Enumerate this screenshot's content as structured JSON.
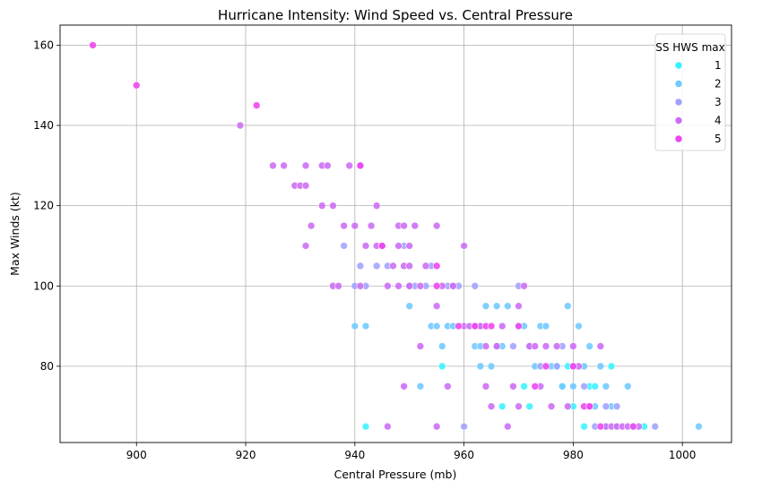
{
  "chart_data": {
    "type": "scatter",
    "title": "Hurricane Intensity: Wind Speed vs. Central Pressure",
    "xlabel": "Central Pressure (mb)",
    "ylabel": "Max Winds (kt)",
    "xlim": [
      886,
      1009
    ],
    "ylim": [
      61,
      165
    ],
    "xticks": [
      900,
      920,
      940,
      960,
      980,
      1000
    ],
    "yticks": [
      80,
      100,
      120,
      140,
      160
    ],
    "grid": true,
    "legend": {
      "title": "SS HWS max",
      "placement": "top-right"
    },
    "series": [
      {
        "name": "1",
        "color": "#38f2ff",
        "points": [
          [
            942,
            65
          ],
          [
            956,
            80
          ],
          [
            967,
            70
          ],
          [
            971,
            75
          ],
          [
            972,
            70
          ],
          [
            977,
            80
          ],
          [
            978,
            75
          ],
          [
            980,
            70
          ],
          [
            982,
            65
          ],
          [
            983,
            75
          ],
          [
            984,
            75
          ],
          [
            986,
            65
          ],
          [
            987,
            80
          ],
          [
            991,
            65
          ],
          [
            993,
            65
          ],
          [
            979,
            80
          ]
        ]
      },
      {
        "name": "2",
        "color": "#6fc8ff",
        "points": [
          [
            940,
            90
          ],
          [
            942,
            90
          ],
          [
            950,
            95
          ],
          [
            952,
            75
          ],
          [
            954,
            90
          ],
          [
            955,
            90
          ],
          [
            956,
            85
          ],
          [
            957,
            90
          ],
          [
            958,
            90
          ],
          [
            962,
            85
          ],
          [
            963,
            80
          ],
          [
            963,
            85
          ],
          [
            964,
            95
          ],
          [
            965,
            80
          ],
          [
            966,
            95
          ],
          [
            967,
            85
          ],
          [
            968,
            95
          ],
          [
            970,
            90
          ],
          [
            971,
            90
          ],
          [
            972,
            85
          ],
          [
            973,
            80
          ],
          [
            974,
            90
          ],
          [
            975,
            90
          ],
          [
            976,
            80
          ],
          [
            978,
            75
          ],
          [
            979,
            95
          ],
          [
            980,
            75
          ],
          [
            981,
            90
          ],
          [
            982,
            80
          ],
          [
            983,
            85
          ],
          [
            984,
            70
          ],
          [
            985,
            80
          ],
          [
            986,
            75
          ],
          [
            987,
            70
          ],
          [
            988,
            65
          ],
          [
            990,
            75
          ],
          [
            1003,
            65
          ]
        ]
      },
      {
        "name": "3",
        "color": "#a0a2ff",
        "points": [
          [
            938,
            110
          ],
          [
            940,
            100
          ],
          [
            941,
            105
          ],
          [
            942,
            100
          ],
          [
            944,
            105
          ],
          [
            945,
            110
          ],
          [
            946,
            105
          ],
          [
            949,
            110
          ],
          [
            950,
            100
          ],
          [
            951,
            100
          ],
          [
            953,
            100
          ],
          [
            954,
            105
          ],
          [
            957,
            100
          ],
          [
            958,
            100
          ],
          [
            959,
            100
          ],
          [
            960,
            65
          ],
          [
            962,
            100
          ],
          [
            963,
            90
          ],
          [
            966,
            85
          ],
          [
            969,
            85
          ],
          [
            970,
            100
          ],
          [
            974,
            80
          ],
          [
            977,
            80
          ],
          [
            978,
            85
          ],
          [
            980,
            80
          ],
          [
            982,
            75
          ],
          [
            984,
            65
          ],
          [
            986,
            70
          ],
          [
            988,
            70
          ],
          [
            995,
            65
          ]
        ]
      },
      {
        "name": "4",
        "color": "#cc6bf5",
        "points": [
          [
            925,
            130
          ],
          [
            927,
            130
          ],
          [
            929,
            125
          ],
          [
            930,
            125
          ],
          [
            931,
            125
          ],
          [
            931,
            130
          ],
          [
            932,
            115
          ],
          [
            934,
            120
          ],
          [
            934,
            130
          ],
          [
            935,
            130
          ],
          [
            936,
            120
          ],
          [
            936,
            100
          ],
          [
            937,
            100
          ],
          [
            938,
            115
          ],
          [
            939,
            130
          ],
          [
            940,
            115
          ],
          [
            941,
            130
          ],
          [
            941,
            100
          ],
          [
            942,
            110
          ],
          [
            943,
            115
          ],
          [
            944,
            110
          ],
          [
            944,
            120
          ],
          [
            945,
            110
          ],
          [
            946,
            100
          ],
          [
            946,
            65
          ],
          [
            947,
            105
          ],
          [
            948,
            115
          ],
          [
            948,
            110
          ],
          [
            948,
            100
          ],
          [
            949,
            75
          ],
          [
            949,
            115
          ],
          [
            949,
            105
          ],
          [
            950,
            110
          ],
          [
            950,
            105
          ],
          [
            950,
            100
          ],
          [
            951,
            115
          ],
          [
            952,
            100
          ],
          [
            952,
            85
          ],
          [
            953,
            105
          ],
          [
            955,
            115
          ],
          [
            955,
            95
          ],
          [
            955,
            65
          ],
          [
            956,
            100
          ],
          [
            957,
            75
          ],
          [
            958,
            100
          ],
          [
            960,
            90
          ],
          [
            960,
            110
          ],
          [
            961,
            90
          ],
          [
            962,
            90
          ],
          [
            963,
            90
          ],
          [
            964,
            85
          ],
          [
            964,
            75
          ],
          [
            965,
            70
          ],
          [
            966,
            85
          ],
          [
            967,
            90
          ],
          [
            968,
            65
          ],
          [
            969,
            75
          ],
          [
            970,
            95
          ],
          [
            970,
            70
          ],
          [
            971,
            100
          ],
          [
            972,
            85
          ],
          [
            973,
            85
          ],
          [
            974,
            75
          ],
          [
            975,
            85
          ],
          [
            976,
            70
          ],
          [
            977,
            85
          ],
          [
            979,
            70
          ],
          [
            980,
            85
          ],
          [
            981,
            80
          ],
          [
            983,
            70
          ],
          [
            985,
            85
          ],
          [
            986,
            65
          ],
          [
            987,
            65
          ],
          [
            988,
            65
          ],
          [
            989,
            65
          ],
          [
            990,
            65
          ],
          [
            992,
            65
          ],
          [
            931,
            110
          ],
          [
            919,
            140
          ]
        ]
      },
      {
        "name": "5",
        "color": "#ee43f0",
        "points": [
          [
            892,
            160
          ],
          [
            900,
            150
          ],
          [
            922,
            145
          ],
          [
            941,
            130
          ],
          [
            945,
            110
          ],
          [
            955,
            105
          ],
          [
            955,
            100
          ],
          [
            959,
            90
          ],
          [
            962,
            90
          ],
          [
            964,
            90
          ],
          [
            965,
            90
          ],
          [
            970,
            90
          ],
          [
            973,
            75
          ],
          [
            975,
            80
          ],
          [
            980,
            80
          ],
          [
            982,
            70
          ],
          [
            983,
            70
          ],
          [
            985,
            65
          ],
          [
            991,
            65
          ]
        ]
      }
    ]
  }
}
